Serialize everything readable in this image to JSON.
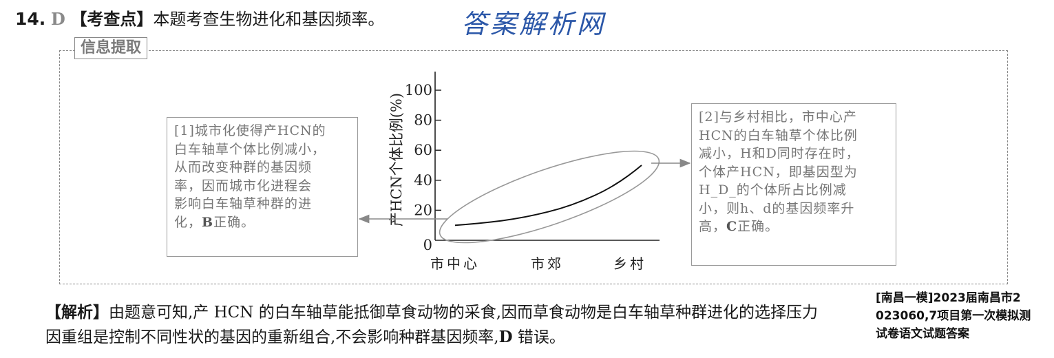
{
  "question": {
    "number": "14",
    "answer": "D",
    "topic_label": "【考查点】",
    "topic_text": "本题考查生物进化和基因频率。"
  },
  "watermark_title": "答案解析网",
  "frame": {
    "label": "信息提取"
  },
  "box_left": {
    "lines": [
      "[1]城市化使得产HCN的",
      "白车轴草个体比例减小，",
      "从而改变种群的基因频",
      "率，因而城市化进程会",
      "影响白车轴草种群的进"
    ],
    "last_prefix": "化，",
    "last_bold": "B",
    "last_suffix": "正确。"
  },
  "box_right": {
    "lines": [
      "[2]与乡村相比，市中心产",
      "HCN的白车轴草个体比例",
      "减小，H和D同时存在时，",
      "个体产HCN，即基因型为",
      "H_D_的个体所占比例减",
      "小，则h、d的基因频率升"
    ],
    "last_prefix": "高，",
    "last_bold": "C",
    "last_suffix": "正确。"
  },
  "chart_data": {
    "type": "line",
    "ylabel": "产HCN个体比例(%)",
    "xlabel": "",
    "ylim": [
      0,
      100
    ],
    "yticks": [
      "0",
      "20",
      "40",
      "60",
      "80",
      "100"
    ],
    "categories": [
      "市中心",
      "市郊",
      "乡村"
    ],
    "series": [
      {
        "x": [
          0,
          0.25,
          0.5,
          0.75,
          1.0
        ],
        "y": [
          10,
          13,
          19,
          30,
          50
        ]
      }
    ]
  },
  "analysis": {
    "header": "【解析】",
    "line1": "由题意可知,产 HCN 的白车轴草能抵御草食动物的采食,因而草食动物是白车轴草种群进化的选择压力",
    "line2_prefix": "因重组是控制不同性状的基因的重新组合,不会影响种群基因频率,",
    "line2_bold": "D",
    "line2_suffix": " 错误。"
  },
  "overlay_lines": [
    "[南昌一模]2023届南昌市2",
    "023060,7项目第一次模拟测",
    "试卷语文试题答案"
  ]
}
